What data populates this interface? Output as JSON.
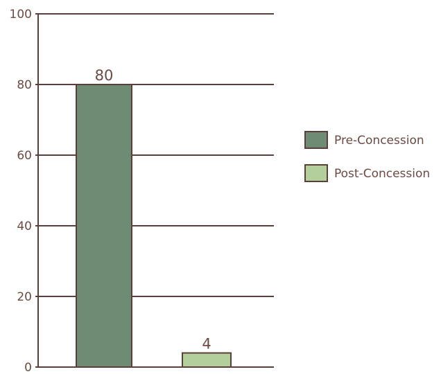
{
  "chart_data": {
    "type": "bar",
    "categories": [
      "Pre-Concession",
      "Post-Concession"
    ],
    "values": [
      80,
      4
    ],
    "data_labels": [
      "80",
      "4"
    ],
    "ylim": [
      0,
      100
    ],
    "yticks": [
      0,
      20,
      40,
      60,
      80,
      100
    ],
    "ytick_labels": [
      "0",
      "20",
      "40",
      "60",
      "80",
      "100"
    ],
    "grid": true,
    "legend_placement": "right",
    "legend": [
      {
        "label": "Pre-Concession",
        "color": "#6e8b73"
      },
      {
        "label": "Post-Concession",
        "color": "#b3cf9c"
      }
    ],
    "colors": {
      "axis": "#5b3e3a",
      "text": "#6b4a44",
      "bars": [
        "#6e8b73",
        "#b3cf9c"
      ]
    }
  }
}
